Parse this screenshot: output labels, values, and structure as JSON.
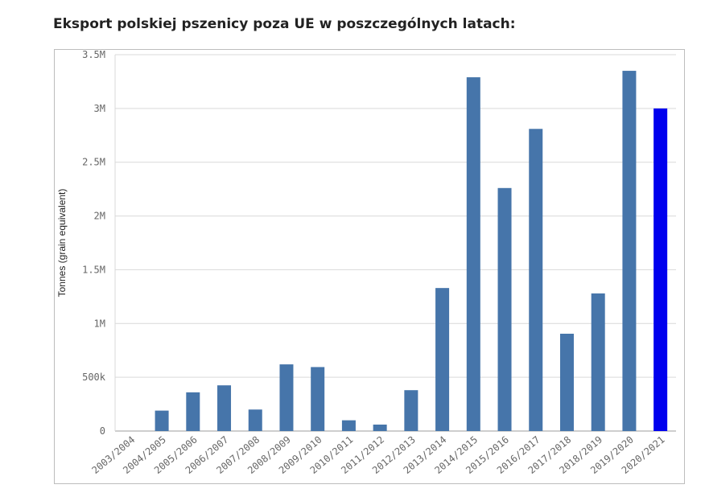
{
  "page": {
    "title": "Eksport polskiej pszenicy poza UE w poszczególnych latach:"
  },
  "chart_data": {
    "type": "bar",
    "title": "",
    "xlabel": "",
    "ylabel": "Tonnes (grain equivalent)",
    "ylim": [
      0,
      3500000
    ],
    "yticks": [
      {
        "value": 0,
        "label": "0"
      },
      {
        "value": 500000,
        "label": "500k"
      },
      {
        "value": 1000000,
        "label": "1M"
      },
      {
        "value": 1500000,
        "label": "1.5M"
      },
      {
        "value": 2000000,
        "label": "2M"
      },
      {
        "value": 2500000,
        "label": "2.5M"
      },
      {
        "value": 3000000,
        "label": "3M"
      },
      {
        "value": 3500000,
        "label": "3.5M"
      }
    ],
    "grid": true,
    "categories": [
      "2003/2004",
      "2004/2005",
      "2005/2006",
      "2006/2007",
      "2007/2008",
      "2008/2009",
      "2009/2010",
      "2010/2011",
      "2011/2012",
      "2012/2013",
      "2013/2014",
      "2014/2015",
      "2015/2016",
      "2016/2017",
      "2017/2018",
      "2018/2019",
      "2019/2020",
      "2020/2021"
    ],
    "values": [
      0,
      190000,
      360000,
      425000,
      200000,
      620000,
      595000,
      100000,
      60000,
      380000,
      1330000,
      3290000,
      2260000,
      2810000,
      905000,
      1280000,
      3350000,
      3000000
    ],
    "colors": {
      "bar": "#4675aa",
      "highlight": "#0000ee"
    },
    "highlight_index": 17
  }
}
